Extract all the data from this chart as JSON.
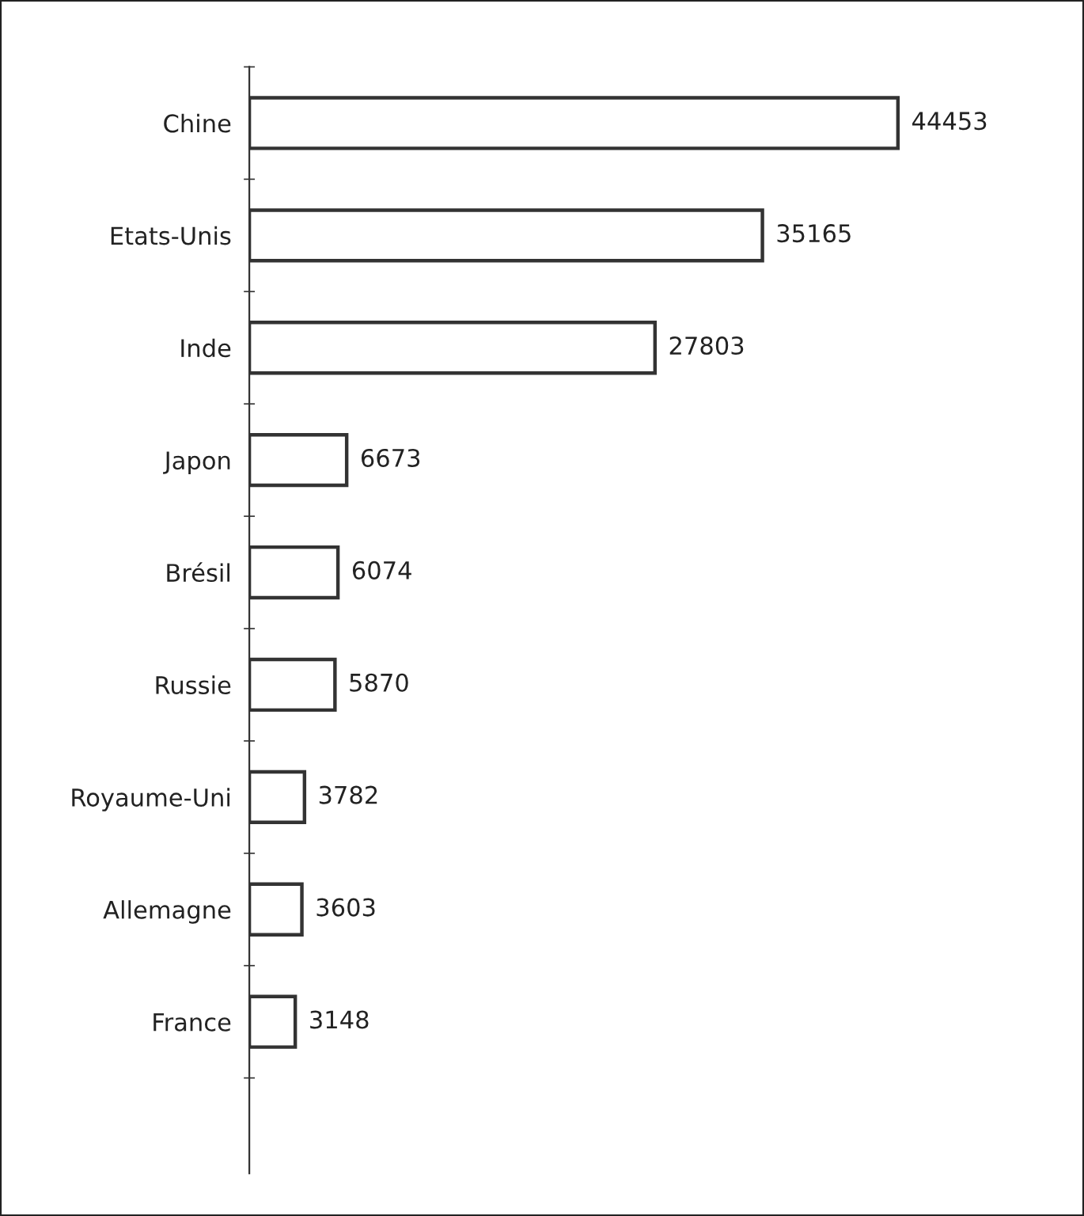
{
  "chart_data": {
    "type": "bar",
    "orientation": "horizontal",
    "categories": [
      "Chine",
      "Etats-Unis",
      "Inde",
      "Japon",
      "Brésil",
      "Russie",
      "Royaume-Uni",
      "Allemagne",
      "France"
    ],
    "values": [
      44453,
      35165,
      27803,
      6673,
      6074,
      5870,
      3782,
      3603,
      3148
    ],
    "color": "#ffffff",
    "data_labels": true,
    "tick_labels": "y",
    "grid": false,
    "legend": false
  }
}
